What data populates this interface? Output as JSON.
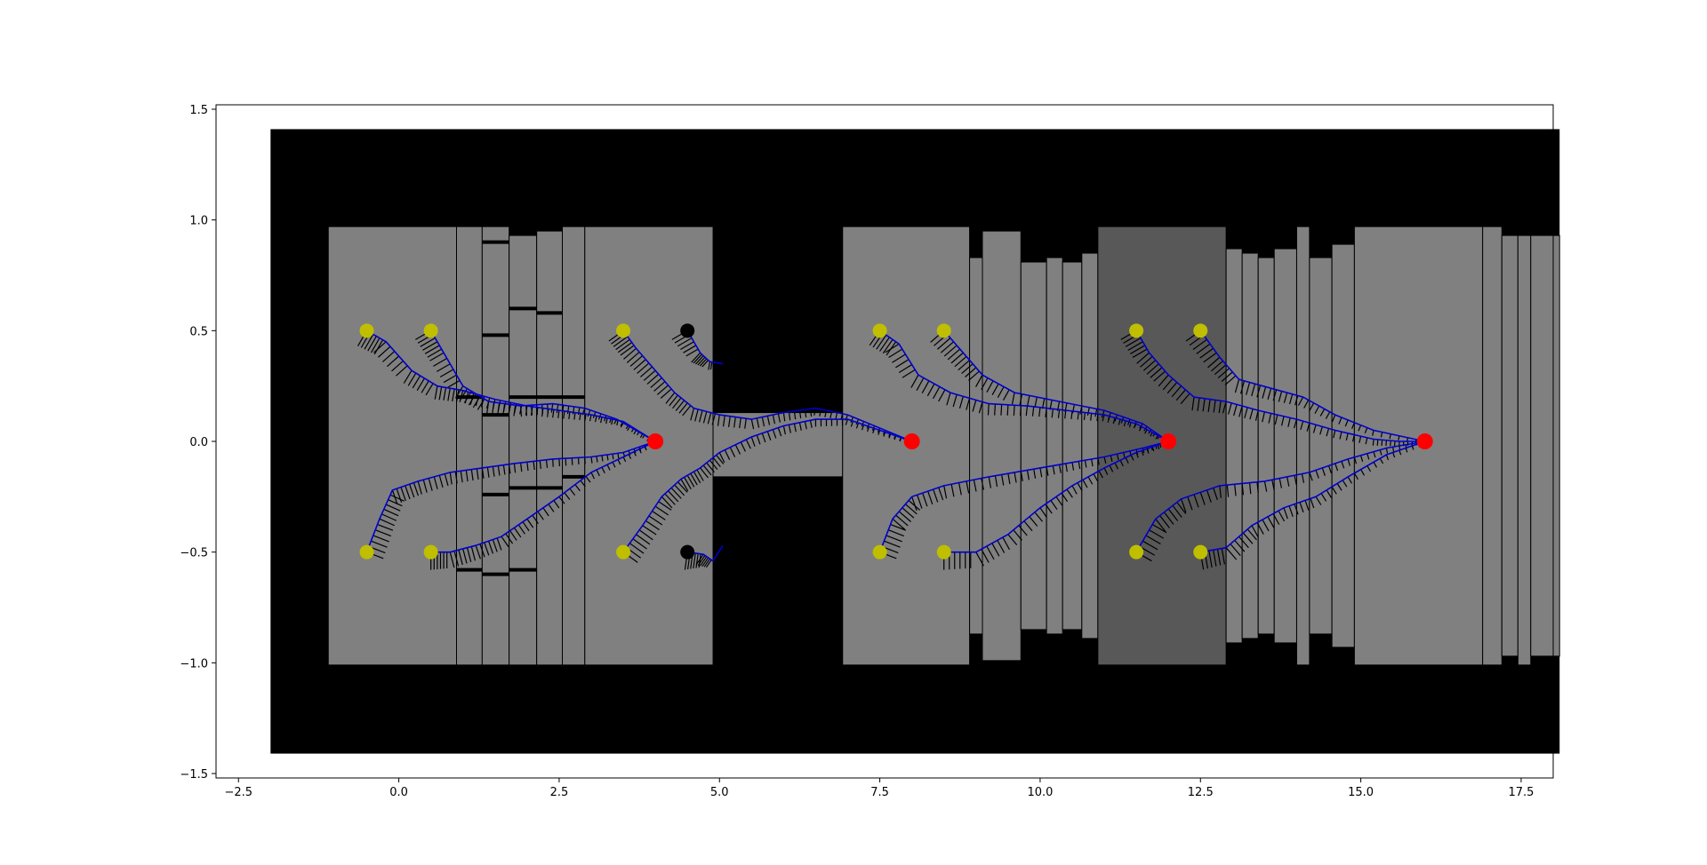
{
  "colors": {
    "background": "#ffffff",
    "arena": "#000000",
    "region_light": "#808080",
    "region_dark": "#585858",
    "divider": "#000000",
    "path": "#0000cc",
    "heading_marks": "#000000",
    "start_active": "#bfbf00",
    "start_inactive": "#000000",
    "goal": "#ff0000"
  },
  "chart_data": {
    "type": "scatter",
    "title": "",
    "xlabel": "",
    "ylabel": "",
    "xlim": [
      -2.85,
      18.0
    ],
    "ylim": [
      -1.52,
      1.52
    ],
    "grid": false,
    "legend": "none",
    "xticks": [
      -2.5,
      0.0,
      2.5,
      5.0,
      7.5,
      10.0,
      12.5,
      15.0,
      17.5
    ],
    "xtick_labels": [
      "−2.5",
      "0.0",
      "2.5",
      "5.0",
      "7.5",
      "10.0",
      "12.5",
      "15.0",
      "17.5"
    ],
    "yticks": [
      1.5,
      1.0,
      0.5,
      0.0,
      -0.5,
      -1.0,
      -1.5
    ],
    "ytick_labels": [
      "1.5",
      "1.0",
      "0.5",
      "0.0",
      "−0.5",
      "−1.0",
      "−1.5"
    ],
    "arena": {
      "x0": -2.0,
      "x1": 18.1,
      "y0": -1.41,
      "y1": 1.41
    },
    "regions": [
      {
        "x0": -1.1,
        "x1": 0.9,
        "y0": -1.01,
        "y1": 0.97,
        "shade": "light"
      },
      {
        "x0": 0.9,
        "x1": 1.3,
        "y0": -1.01,
        "y1": 0.97,
        "shade": "light"
      },
      {
        "x0": 1.3,
        "x1": 1.72,
        "y0": -1.01,
        "y1": 0.97,
        "shade": "light"
      },
      {
        "x0": 1.72,
        "x1": 2.15,
        "y0": -1.01,
        "y1": 0.93,
        "shade": "light"
      },
      {
        "x0": 2.15,
        "x1": 2.55,
        "y0": -1.01,
        "y1": 0.95,
        "shade": "light"
      },
      {
        "x0": 2.55,
        "x1": 2.9,
        "y0": -1.01,
        "y1": 0.97,
        "shade": "light"
      },
      {
        "x0": 2.9,
        "x1": 4.9,
        "y0": -1.01,
        "y1": 0.97,
        "shade": "light"
      },
      {
        "x0": 4.9,
        "x1": 6.92,
        "y0": -0.16,
        "y1": 0.13,
        "shade": "light"
      },
      {
        "x0": 6.92,
        "x1": 8.9,
        "y0": -1.01,
        "y1": 0.97,
        "shade": "light"
      },
      {
        "x0": 8.9,
        "x1": 9.1,
        "y0": -0.87,
        "y1": 0.83,
        "shade": "light"
      },
      {
        "x0": 9.1,
        "x1": 9.7,
        "y0": -0.99,
        "y1": 0.95,
        "shade": "light"
      },
      {
        "x0": 9.7,
        "x1": 10.1,
        "y0": -0.85,
        "y1": 0.81,
        "shade": "light"
      },
      {
        "x0": 10.1,
        "x1": 10.35,
        "y0": -0.87,
        "y1": 0.83,
        "shade": "light"
      },
      {
        "x0": 10.35,
        "x1": 10.65,
        "y0": -0.85,
        "y1": 0.81,
        "shade": "light"
      },
      {
        "x0": 10.65,
        "x1": 10.9,
        "y0": -0.89,
        "y1": 0.85,
        "shade": "light"
      },
      {
        "x0": 10.9,
        "x1": 12.9,
        "y0": -1.01,
        "y1": 0.97,
        "shade": "dark"
      },
      {
        "x0": 12.9,
        "x1": 13.15,
        "y0": -0.91,
        "y1": 0.87,
        "shade": "light"
      },
      {
        "x0": 13.15,
        "x1": 13.4,
        "y0": -0.89,
        "y1": 0.85,
        "shade": "light"
      },
      {
        "x0": 13.4,
        "x1": 13.65,
        "y0": -0.87,
        "y1": 0.83,
        "shade": "light"
      },
      {
        "x0": 13.65,
        "x1": 14.0,
        "y0": -0.91,
        "y1": 0.87,
        "shade": "light"
      },
      {
        "x0": 14.0,
        "x1": 14.2,
        "y0": -1.01,
        "y1": 0.97,
        "shade": "light"
      },
      {
        "x0": 14.2,
        "x1": 14.55,
        "y0": -0.87,
        "y1": 0.83,
        "shade": "light"
      },
      {
        "x0": 14.55,
        "x1": 14.9,
        "y0": -0.93,
        "y1": 0.89,
        "shade": "light"
      },
      {
        "x0": 14.9,
        "x1": 16.9,
        "y0": -1.01,
        "y1": 0.97,
        "shade": "light"
      },
      {
        "x0": 16.9,
        "x1": 17.2,
        "y0": -1.01,
        "y1": 0.97,
        "shade": "light"
      },
      {
        "x0": 17.2,
        "x1": 17.45,
        "y0": -0.97,
        "y1": 0.93,
        "shade": "light"
      },
      {
        "x0": 17.45,
        "x1": 17.65,
        "y0": -1.01,
        "y1": 0.93,
        "shade": "light"
      },
      {
        "x0": 17.65,
        "x1": 18.1,
        "y0": -0.97,
        "y1": 0.93,
        "shade": "light"
      }
    ],
    "barriers": [
      {
        "x0": 1.3,
        "x1": 1.72,
        "y": 0.9
      },
      {
        "x0": 1.3,
        "x1": 1.72,
        "y": 0.48
      },
      {
        "x0": 1.72,
        "x1": 2.15,
        "y": 0.6
      },
      {
        "x0": 2.15,
        "x1": 2.55,
        "y": 0.58
      },
      {
        "x0": 0.9,
        "x1": 1.3,
        "y": 0.2
      },
      {
        "x0": 1.72,
        "x1": 2.55,
        "y": 0.2
      },
      {
        "x0": 2.55,
        "x1": 2.9,
        "y": 0.2
      },
      {
        "x0": 1.3,
        "x1": 1.72,
        "y": 0.12
      },
      {
        "x0": 1.72,
        "x1": 2.55,
        "y": -0.21
      },
      {
        "x0": 1.3,
        "x1": 1.72,
        "y": -0.24
      },
      {
        "x0": 2.55,
        "x1": 2.9,
        "y": -0.16
      },
      {
        "x0": 0.9,
        "x1": 1.3,
        "y": -0.58
      },
      {
        "x0": 1.3,
        "x1": 1.72,
        "y": -0.6
      },
      {
        "x0": 1.72,
        "x1": 2.15,
        "y": -0.58
      }
    ],
    "goals": [
      {
        "x": 4.0,
        "y": 0.0
      },
      {
        "x": 8.0,
        "y": 0.0
      },
      {
        "x": 12.0,
        "y": 0.0
      },
      {
        "x": 16.0,
        "y": 0.0
      }
    ],
    "starts": [
      {
        "x": -0.5,
        "y": 0.5,
        "active": true
      },
      {
        "x": 0.5,
        "y": 0.5,
        "active": true
      },
      {
        "x": -0.5,
        "y": -0.5,
        "active": true
      },
      {
        "x": 0.5,
        "y": -0.5,
        "active": true
      },
      {
        "x": 3.5,
        "y": 0.5,
        "active": true
      },
      {
        "x": 4.5,
        "y": 0.5,
        "active": false
      },
      {
        "x": 3.5,
        "y": -0.5,
        "active": true
      },
      {
        "x": 4.5,
        "y": -0.5,
        "active": false
      },
      {
        "x": 7.5,
        "y": 0.5,
        "active": true
      },
      {
        "x": 8.5,
        "y": 0.5,
        "active": true
      },
      {
        "x": 7.5,
        "y": -0.5,
        "active": true
      },
      {
        "x": 8.5,
        "y": -0.5,
        "active": true
      },
      {
        "x": 11.5,
        "y": 0.5,
        "active": true
      },
      {
        "x": 12.5,
        "y": 0.5,
        "active": true
      },
      {
        "x": 11.5,
        "y": -0.5,
        "active": true
      },
      {
        "x": 12.5,
        "y": -0.5,
        "active": true
      }
    ],
    "trajectories": [
      {
        "points": [
          [
            -0.5,
            0.5
          ],
          [
            -0.2,
            0.45
          ],
          [
            0.2,
            0.32
          ],
          [
            0.6,
            0.25
          ],
          [
            1.0,
            0.23
          ],
          [
            1.5,
            0.19
          ],
          [
            2.0,
            0.16
          ],
          [
            2.5,
            0.14
          ],
          [
            3.0,
            0.12
          ],
          [
            3.5,
            0.09
          ],
          [
            4.0,
            0.0
          ]
        ]
      },
      {
        "points": [
          [
            0.5,
            0.5
          ],
          [
            0.7,
            0.4
          ],
          [
            1.0,
            0.25
          ],
          [
            1.4,
            0.18
          ],
          [
            1.9,
            0.16
          ],
          [
            2.4,
            0.17
          ],
          [
            2.9,
            0.15
          ],
          [
            3.4,
            0.1
          ],
          [
            4.0,
            0.0
          ]
        ]
      },
      {
        "points": [
          [
            -0.5,
            -0.5
          ],
          [
            -0.3,
            -0.35
          ],
          [
            -0.1,
            -0.22
          ],
          [
            0.3,
            -0.18
          ],
          [
            0.8,
            -0.14
          ],
          [
            1.3,
            -0.12
          ],
          [
            1.8,
            -0.1
          ],
          [
            2.4,
            -0.08
          ],
          [
            3.0,
            -0.07
          ],
          [
            3.5,
            -0.05
          ],
          [
            4.0,
            0.0
          ]
        ]
      },
      {
        "points": [
          [
            0.5,
            -0.5
          ],
          [
            0.8,
            -0.5
          ],
          [
            1.2,
            -0.47
          ],
          [
            1.6,
            -0.43
          ],
          [
            2.0,
            -0.35
          ],
          [
            2.5,
            -0.25
          ],
          [
            3.0,
            -0.14
          ],
          [
            3.5,
            -0.07
          ],
          [
            4.0,
            0.0
          ]
        ]
      },
      {
        "points": [
          [
            3.5,
            0.5
          ],
          [
            3.7,
            0.42
          ],
          [
            4.0,
            0.32
          ],
          [
            4.3,
            0.22
          ],
          [
            4.6,
            0.15
          ],
          [
            5.0,
            0.12
          ],
          [
            5.5,
            0.1
          ],
          [
            6.0,
            0.13
          ],
          [
            6.5,
            0.15
          ],
          [
            7.0,
            0.12
          ],
          [
            7.5,
            0.06
          ],
          [
            8.0,
            0.0
          ]
        ]
      },
      {
        "points": [
          [
            4.5,
            0.5
          ],
          [
            4.7,
            0.4
          ],
          [
            4.85,
            0.36
          ],
          [
            5.05,
            0.35
          ]
        ]
      },
      {
        "points": [
          [
            3.5,
            -0.5
          ],
          [
            3.8,
            -0.38
          ],
          [
            4.1,
            -0.25
          ],
          [
            4.4,
            -0.17
          ],
          [
            4.7,
            -0.12
          ],
          [
            5.0,
            -0.05
          ],
          [
            5.5,
            0.02
          ],
          [
            6.0,
            0.07
          ],
          [
            6.5,
            0.1
          ],
          [
            7.0,
            0.1
          ],
          [
            7.5,
            0.05
          ],
          [
            8.0,
            0.0
          ]
        ]
      },
      {
        "points": [
          [
            4.5,
            -0.5
          ],
          [
            4.75,
            -0.51
          ],
          [
            4.9,
            -0.54
          ],
          [
            5.05,
            -0.47
          ]
        ]
      },
      {
        "points": [
          [
            7.5,
            0.5
          ],
          [
            7.8,
            0.44
          ],
          [
            8.1,
            0.3
          ],
          [
            8.6,
            0.22
          ],
          [
            9.2,
            0.17
          ],
          [
            9.8,
            0.16
          ],
          [
            10.4,
            0.14
          ],
          [
            11.0,
            0.12
          ],
          [
            11.5,
            0.08
          ],
          [
            12.0,
            0.0
          ]
        ]
      },
      {
        "points": [
          [
            8.5,
            0.5
          ],
          [
            8.8,
            0.4
          ],
          [
            9.1,
            0.3
          ],
          [
            9.6,
            0.22
          ],
          [
            10.3,
            0.18
          ],
          [
            11.0,
            0.14
          ],
          [
            11.6,
            0.08
          ],
          [
            12.0,
            0.0
          ]
        ]
      },
      {
        "points": [
          [
            7.5,
            -0.5
          ],
          [
            7.7,
            -0.35
          ],
          [
            8.0,
            -0.25
          ],
          [
            8.5,
            -0.2
          ],
          [
            9.2,
            -0.16
          ],
          [
            9.8,
            -0.13
          ],
          [
            10.4,
            -0.1
          ],
          [
            11.0,
            -0.07
          ],
          [
            11.6,
            -0.03
          ],
          [
            12.0,
            0.0
          ]
        ]
      },
      {
        "points": [
          [
            8.5,
            -0.5
          ],
          [
            9.0,
            -0.5
          ],
          [
            9.5,
            -0.42
          ],
          [
            10.0,
            -0.3
          ],
          [
            10.5,
            -0.2
          ],
          [
            11.0,
            -0.12
          ],
          [
            11.5,
            -0.05
          ],
          [
            12.0,
            0.0
          ]
        ]
      },
      {
        "points": [
          [
            11.5,
            0.5
          ],
          [
            11.7,
            0.4
          ],
          [
            12.0,
            0.3
          ],
          [
            12.4,
            0.2
          ],
          [
            12.9,
            0.18
          ],
          [
            13.4,
            0.14
          ],
          [
            14.0,
            0.1
          ],
          [
            14.6,
            0.05
          ],
          [
            15.2,
            0.01
          ],
          [
            15.6,
            0.0
          ],
          [
            16.0,
            0.0
          ]
        ]
      },
      {
        "points": [
          [
            12.5,
            0.5
          ],
          [
            12.8,
            0.38
          ],
          [
            13.1,
            0.28
          ],
          [
            13.6,
            0.24
          ],
          [
            14.1,
            0.2
          ],
          [
            14.6,
            0.12
          ],
          [
            15.2,
            0.05
          ],
          [
            16.0,
            0.0
          ]
        ]
      },
      {
        "points": [
          [
            11.5,
            -0.5
          ],
          [
            11.8,
            -0.35
          ],
          [
            12.2,
            -0.26
          ],
          [
            12.8,
            -0.2
          ],
          [
            13.5,
            -0.18
          ],
          [
            14.2,
            -0.14
          ],
          [
            14.8,
            -0.08
          ],
          [
            15.4,
            -0.03
          ],
          [
            16.0,
            0.0
          ]
        ]
      },
      {
        "points": [
          [
            12.5,
            -0.5
          ],
          [
            12.9,
            -0.48
          ],
          [
            13.3,
            -0.38
          ],
          [
            13.8,
            -0.3
          ],
          [
            14.3,
            -0.25
          ],
          [
            14.8,
            -0.16
          ],
          [
            15.4,
            -0.06
          ],
          [
            16.0,
            0.0
          ]
        ]
      }
    ]
  }
}
